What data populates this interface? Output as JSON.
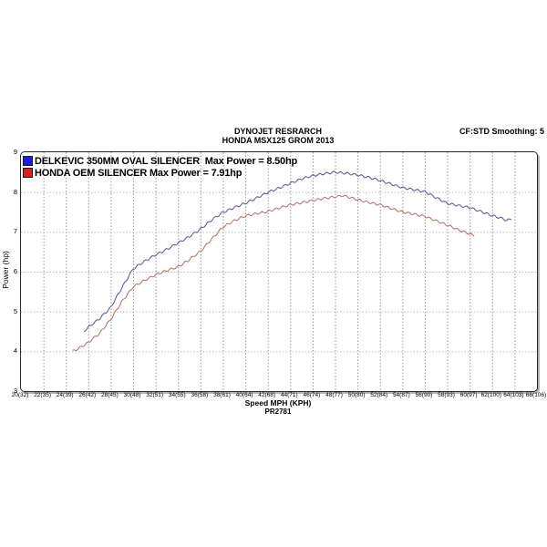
{
  "header": {
    "title_line1": "DYNOJET RESRARCH",
    "title_line2": "HONDA MSX125 GROM 2013",
    "smoothing_label": "CF:STD Smoothing: 5"
  },
  "footer": {
    "xaxis_title": "Speed MPH (KPH)",
    "run_id": "PR2781"
  },
  "axes": {
    "ylabel": "Power (hp)",
    "y_ticks": [
      "9",
      "8",
      "7",
      "6",
      "5",
      "4",
      "3"
    ],
    "x_tick_labels": [
      "20(32)",
      "22(35)",
      "24(39)",
      "26(42)",
      "28(45)",
      "30(48)",
      "32(51)",
      "34(55)",
      "36(58)",
      "38(61)",
      "40(64)",
      "42(68)",
      "44(71)",
      "46(74)",
      "48(77)",
      "50(80)",
      "52(84)",
      "54(87)",
      "56(90)",
      "58(93)",
      "60(97)",
      "62(100)",
      "64(103)",
      "66(106)"
    ]
  },
  "colors": {
    "grid_vertical": "#999999",
    "grid_horizontal": "#bcbcbc",
    "border": "#2a2a2a"
  },
  "chart_data": {
    "type": "line",
    "title": "DYNOJET RESRARCH",
    "subtitle": "HONDA MSX125 GROM 2013",
    "xlabel": "Speed MPH (KPH)",
    "ylabel": "Power (hp)",
    "xlim": [
      20,
      66
    ],
    "ylim": [
      3,
      9
    ],
    "x_tick_step_mph": 2,
    "y_tick_step_hp": 1,
    "grid": "dashed",
    "legend_position": "top-left-inside",
    "series": [
      {
        "name": "DELKEVIC 350MM OVAL SILENCER",
        "legend_label": "DELKEVIC 350MM OVAL SILENCER  Max Power = 8.50hp",
        "max_power_hp": 8.5,
        "line_color": "#54548c",
        "swatch_color": "#1c1ce0",
        "points_mph_hp": [
          [
            25.6,
            4.5
          ],
          [
            26,
            4.6
          ],
          [
            27,
            4.82
          ],
          [
            28,
            5.1
          ],
          [
            29,
            5.6
          ],
          [
            30,
            6.07
          ],
          [
            31,
            6.26
          ],
          [
            32,
            6.42
          ],
          [
            33,
            6.56
          ],
          [
            34,
            6.72
          ],
          [
            35,
            6.88
          ],
          [
            36,
            7.07
          ],
          [
            37,
            7.3
          ],
          [
            38,
            7.49
          ],
          [
            39,
            7.61
          ],
          [
            40,
            7.72
          ],
          [
            41,
            7.85
          ],
          [
            42,
            7.99
          ],
          [
            43,
            8.1
          ],
          [
            44,
            8.22
          ],
          [
            45,
            8.33
          ],
          [
            46,
            8.41
          ],
          [
            47,
            8.46
          ],
          [
            48,
            8.5
          ],
          [
            49,
            8.47
          ],
          [
            50,
            8.43
          ],
          [
            51,
            8.37
          ],
          [
            52,
            8.29
          ],
          [
            53,
            8.2
          ],
          [
            54,
            8.11
          ],
          [
            55,
            8.06
          ],
          [
            56,
            8.01
          ],
          [
            57,
            7.86
          ],
          [
            58,
            7.72
          ],
          [
            59,
            7.66
          ],
          [
            60,
            7.61
          ],
          [
            61,
            7.51
          ],
          [
            62,
            7.41
          ],
          [
            63,
            7.33
          ],
          [
            63.3,
            7.28
          ],
          [
            63.7,
            7.33
          ]
        ]
      },
      {
        "name": "HONDA OEM SILENCER",
        "legend_label": "HONDA OEM SILENCER Max Power = 7.91hp",
        "max_power_hp": 7.91,
        "line_color": "#b06f68",
        "swatch_color": "#e01c1c",
        "points_mph_hp": [
          [
            24.6,
            4.0
          ],
          [
            25,
            4.05
          ],
          [
            26,
            4.22
          ],
          [
            27,
            4.45
          ],
          [
            28,
            4.8
          ],
          [
            29,
            5.25
          ],
          [
            30,
            5.62
          ],
          [
            31,
            5.78
          ],
          [
            32,
            5.92
          ],
          [
            33,
            6.03
          ],
          [
            34,
            6.12
          ],
          [
            35,
            6.3
          ],
          [
            36,
            6.51
          ],
          [
            37,
            6.82
          ],
          [
            38,
            7.12
          ],
          [
            39,
            7.28
          ],
          [
            40,
            7.4
          ],
          [
            41,
            7.46
          ],
          [
            42,
            7.51
          ],
          [
            43,
            7.6
          ],
          [
            44,
            7.68
          ],
          [
            45,
            7.73
          ],
          [
            46,
            7.79
          ],
          [
            47,
            7.84
          ],
          [
            48,
            7.88
          ],
          [
            48.7,
            7.91
          ],
          [
            49,
            7.89
          ],
          [
            50,
            7.81
          ],
          [
            51,
            7.74
          ],
          [
            52,
            7.68
          ],
          [
            53,
            7.59
          ],
          [
            54,
            7.5
          ],
          [
            55,
            7.45
          ],
          [
            56,
            7.39
          ],
          [
            57,
            7.28
          ],
          [
            58,
            7.17
          ],
          [
            59,
            7.05
          ],
          [
            60,
            6.95
          ],
          [
            60.4,
            6.9
          ]
        ]
      }
    ]
  }
}
